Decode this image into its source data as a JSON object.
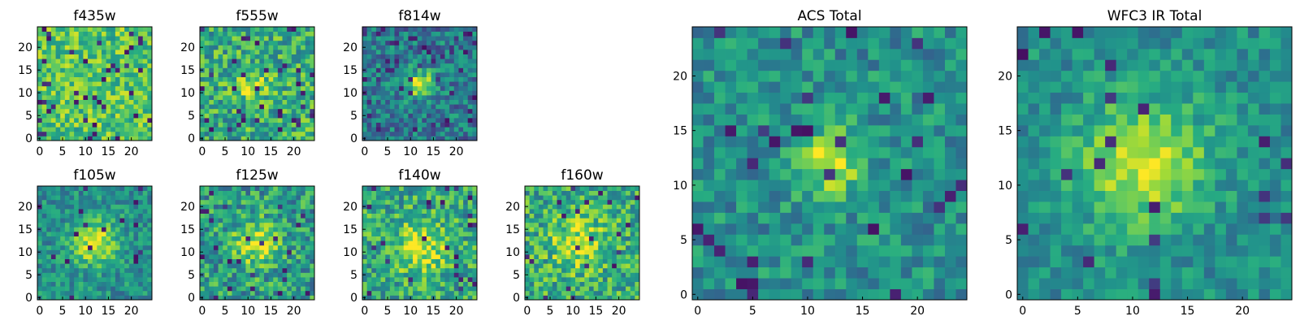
{
  "chart_data": [
    {
      "type": "heatmap",
      "title": "f435w",
      "grid_size": 25,
      "ncols": 25,
      "nrows": 25,
      "xlim": [
        0,
        24
      ],
      "ylim": [
        0,
        24
      ],
      "xticks": [
        0,
        5,
        10,
        15,
        20
      ],
      "yticks": [
        0,
        5,
        10,
        15,
        20
      ],
      "colormap": "viridis",
      "peak": {
        "x": 12,
        "y": 12,
        "sigma": 3,
        "amp": 0.0
      },
      "noise": {
        "base": 0.72,
        "amp": 0.22,
        "dark_spots": 0.06,
        "seed": 11
      },
      "grid_on": false
    },
    {
      "type": "heatmap",
      "title": "f555w",
      "grid_size": 25,
      "ncols": 25,
      "nrows": 25,
      "xlim": [
        0,
        24
      ],
      "ylim": [
        0,
        24
      ],
      "xticks": [
        0,
        5,
        10,
        15,
        20
      ],
      "yticks": [
        0,
        5,
        10,
        15,
        20
      ],
      "colormap": "viridis",
      "peak": {
        "x": 11,
        "y": 12,
        "sigma": 2.5,
        "amp": 0.25
      },
      "noise": {
        "base": 0.62,
        "amp": 0.25,
        "dark_spots": 0.05,
        "seed": 22
      },
      "grid_on": false
    },
    {
      "type": "heatmap",
      "title": "f814w",
      "grid_size": 25,
      "ncols": 25,
      "nrows": 25,
      "xlim": [
        0,
        24
      ],
      "ylim": [
        0,
        24
      ],
      "xticks": [
        0,
        5,
        10,
        15,
        20
      ],
      "yticks": [
        0,
        5,
        10,
        15,
        20
      ],
      "colormap": "viridis",
      "peak": {
        "x": 12,
        "y": 12,
        "sigma": 2.0,
        "amp": 0.55
      },
      "noise": {
        "base": 0.42,
        "amp": 0.22,
        "dark_spots": 0.07,
        "seed": 33
      },
      "grid_on": false
    },
    {
      "type": "heatmap",
      "title": "f105w",
      "grid_size": 25,
      "ncols": 25,
      "nrows": 25,
      "xlim": [
        0,
        24
      ],
      "ylim": [
        0,
        24
      ],
      "xticks": [
        0,
        5,
        10,
        15,
        20
      ],
      "yticks": [
        0,
        5,
        10,
        15,
        20
      ],
      "colormap": "viridis",
      "peak": {
        "x": 12,
        "y": 12,
        "sigma": 3.5,
        "amp": 0.45
      },
      "noise": {
        "base": 0.5,
        "amp": 0.18,
        "dark_spots": 0.03,
        "seed": 44
      },
      "grid_on": false
    },
    {
      "type": "heatmap",
      "title": "f125w",
      "grid_size": 25,
      "ncols": 25,
      "nrows": 25,
      "xlim": [
        0,
        24
      ],
      "ylim": [
        0,
        24
      ],
      "xticks": [
        0,
        5,
        10,
        15,
        20
      ],
      "yticks": [
        0,
        5,
        10,
        15,
        20
      ],
      "colormap": "viridis",
      "peak": {
        "x": 12,
        "y": 12,
        "sigma": 3.5,
        "amp": 0.4
      },
      "noise": {
        "base": 0.55,
        "amp": 0.25,
        "dark_spots": 0.05,
        "seed": 55
      },
      "grid_on": false
    },
    {
      "type": "heatmap",
      "title": "f140w",
      "grid_size": 25,
      "ncols": 25,
      "nrows": 25,
      "xlim": [
        0,
        24
      ],
      "ylim": [
        0,
        24
      ],
      "xticks": [
        0,
        5,
        10,
        15,
        20
      ],
      "yticks": [
        0,
        5,
        10,
        15,
        20
      ],
      "colormap": "viridis",
      "peak": {
        "x": 12,
        "y": 11,
        "sigma": 4.0,
        "amp": 0.35
      },
      "noise": {
        "base": 0.6,
        "amp": 0.25,
        "dark_spots": 0.04,
        "seed": 66
      },
      "grid_on": false
    },
    {
      "type": "heatmap",
      "title": "f160w",
      "grid_size": 25,
      "ncols": 25,
      "nrows": 25,
      "xlim": [
        0,
        24
      ],
      "ylim": [
        0,
        24
      ],
      "xticks": [
        0,
        5,
        10,
        15,
        20
      ],
      "yticks": [
        0,
        5,
        10,
        15,
        20
      ],
      "colormap": "viridis",
      "peak": {
        "x": 11,
        "y": 12,
        "sigma": 4.0,
        "amp": 0.3
      },
      "noise": {
        "base": 0.62,
        "amp": 0.25,
        "dark_spots": 0.04,
        "seed": 77
      },
      "grid_on": false
    },
    {
      "type": "heatmap",
      "title": "ACS Total",
      "grid_size": 25,
      "ncols": 25,
      "nrows": 25,
      "xlim": [
        0,
        24
      ],
      "ylim": [
        0,
        24
      ],
      "xticks": [
        0,
        5,
        10,
        15,
        20
      ],
      "yticks": [
        0,
        5,
        10,
        15,
        20
      ],
      "colormap": "viridis",
      "peak": {
        "x": 12,
        "y": 12,
        "sigma": 2.2,
        "amp": 0.45
      },
      "noise": {
        "base": 0.5,
        "amp": 0.18,
        "dark_spots": 0.05,
        "seed": 88
      },
      "grid_on": false
    },
    {
      "type": "heatmap",
      "title": "WFC3 IR Total",
      "grid_size": 25,
      "ncols": 25,
      "nrows": 25,
      "xlim": [
        0,
        24
      ],
      "ylim": [
        0,
        24
      ],
      "xticks": [
        0,
        5,
        10,
        15,
        20
      ],
      "yticks": [
        0,
        5,
        10,
        15,
        20
      ],
      "colormap": "viridis",
      "peak": {
        "x": 11,
        "y": 12,
        "sigma": 4.0,
        "amp": 0.45
      },
      "noise": {
        "base": 0.5,
        "amp": 0.15,
        "dark_spots": 0.03,
        "seed": 99
      },
      "grid_on": false
    }
  ]
}
